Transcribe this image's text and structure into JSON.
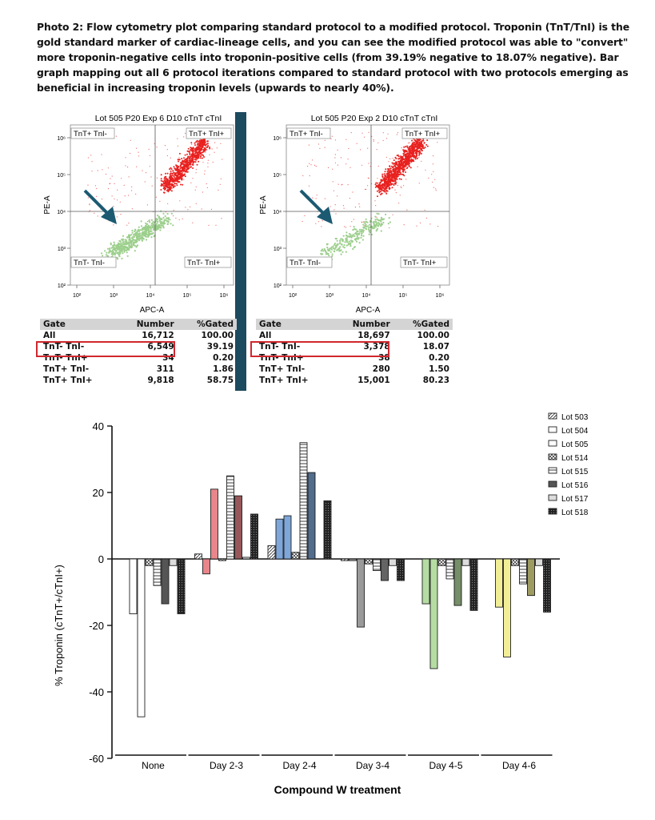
{
  "caption": "Photo 2: Flow cytometry plot comparing standard protocol to a modified protocol. Troponin (TnT/TnI) is the gold standard marker of cardiac-lineage cells, and you can see the modified protocol was able to \"convert\" more troponin-negative cells into troponin-positive cells (from 39.19% negative to 18.07% negative). Bar graph mapping out all 6 protocol iterations compared to standard protocol with two protocols emerging as beneficial in increasing troponin levels (upwards to nearly 40%).",
  "colors": {
    "divider": "#1c4a5e",
    "arrow": "#1c5a72",
    "highlight": "#d0282e",
    "pos": "#e8211f",
    "neg": "#9ccf8c"
  },
  "flow_plots": [
    {
      "title": "Lot 505 P20 Exp 6 D10 cTnT cTnI",
      "quadrants": {
        "tl": "TnT+ TnI-",
        "tr": "TnT+ TnI+",
        "bl": "TnT- TnI-",
        "br": "TnT- TnI+"
      },
      "xlabel": "APC-A",
      "ylabel": "PE-A",
      "xticks": [
        "10²",
        "10³",
        "10⁴",
        "10⁵",
        "10⁶"
      ],
      "yticks": [
        "10⁶",
        "10⁵",
        "10⁴",
        "10³",
        "10²"
      ],
      "table": {
        "headers": [
          "Gate",
          "Number",
          "%Gated"
        ],
        "rows": [
          [
            "All",
            "16,712",
            "100.00"
          ],
          [
            "TnT- TnI-",
            "6,549",
            "39.19"
          ],
          [
            "TnT- TnI+",
            "34",
            "0.20"
          ],
          [
            "TnT+ TnI-",
            "311",
            "1.86"
          ],
          [
            "TnT+ TnI+",
            "9,818",
            "58.75"
          ]
        ]
      }
    },
    {
      "title": "Lot 505 P20 Exp 2 D10 cTnT cTnI",
      "quadrants": {
        "tl": "TnT+ TnI-",
        "tr": "TnT+ TnI+",
        "bl": "TnT- TnI-",
        "br": "TnT- TnI+"
      },
      "xlabel": "APC-A",
      "ylabel": "PE-A",
      "xticks": [
        "10²",
        "10³",
        "10⁴",
        "10⁵",
        "10⁶"
      ],
      "yticks": [
        "10⁶",
        "10⁵",
        "10⁴",
        "10³",
        "10²"
      ],
      "table": {
        "headers": [
          "Gate",
          "Number",
          "%Gated"
        ],
        "rows": [
          [
            "All",
            "18,697",
            "100.00"
          ],
          [
            "TnT- TnI-",
            "3,378",
            "18.07"
          ],
          [
            "TnT- TnI+",
            "38",
            "0.20"
          ],
          [
            "TnT+ TnI-",
            "280",
            "1.50"
          ],
          [
            "TnT+ TnI+",
            "15,001",
            "80.23"
          ]
        ]
      }
    }
  ],
  "chart_data": {
    "type": "bar",
    "categories": [
      "None",
      "Day 2-3",
      "Day 2-4",
      "Day 3-4",
      "Day 4-5",
      "Day 4-6"
    ],
    "category_colors": [
      "#ffffff",
      "#e8868a",
      "#7fa6d8",
      "#9a9a9a",
      "#b5dca2",
      "#f2ee96"
    ],
    "xlabel": "Compound W treatment",
    "ylabel": "% Troponin (cTnT+/cTnI+)",
    "ylim": [
      -60,
      40
    ],
    "yticks": [
      40,
      20,
      0,
      -20,
      -40,
      -60
    ],
    "grid": false,
    "legend_position": "top-right",
    "series": [
      {
        "name": "Lot 503",
        "pattern": "diag",
        "values": [
          null,
          1.5,
          4,
          -0.5,
          null,
          null
        ]
      },
      {
        "name": "Lot 504",
        "pattern": "blank",
        "values": [
          -16.5,
          -4.5,
          12,
          -0.5,
          -13.5,
          -14.5
        ]
      },
      {
        "name": "Lot 505",
        "pattern": "blank",
        "values": [
          -47.5,
          21,
          13,
          -20.5,
          -33,
          -29.5
        ]
      },
      {
        "name": "Lot 514",
        "pattern": "cross",
        "values": [
          -2,
          -0.5,
          2,
          -1.5,
          -2,
          -2
        ]
      },
      {
        "name": "Lot 515",
        "pattern": "hstripe",
        "values": [
          -8,
          25,
          35,
          -3.5,
          -6,
          -7.5
        ]
      },
      {
        "name": "Lot 516",
        "pattern": "dark",
        "values": [
          -13.5,
          19,
          26,
          -6.5,
          -14,
          -11
        ]
      },
      {
        "name": "Lot 517",
        "pattern": "light",
        "values": [
          -2,
          0.5,
          null,
          -2,
          -2,
          -2
        ]
      },
      {
        "name": "Lot 518",
        "pattern": "darkdot",
        "values": [
          -16.5,
          13.5,
          17.5,
          -6.5,
          -15.5,
          -16
        ]
      }
    ]
  }
}
